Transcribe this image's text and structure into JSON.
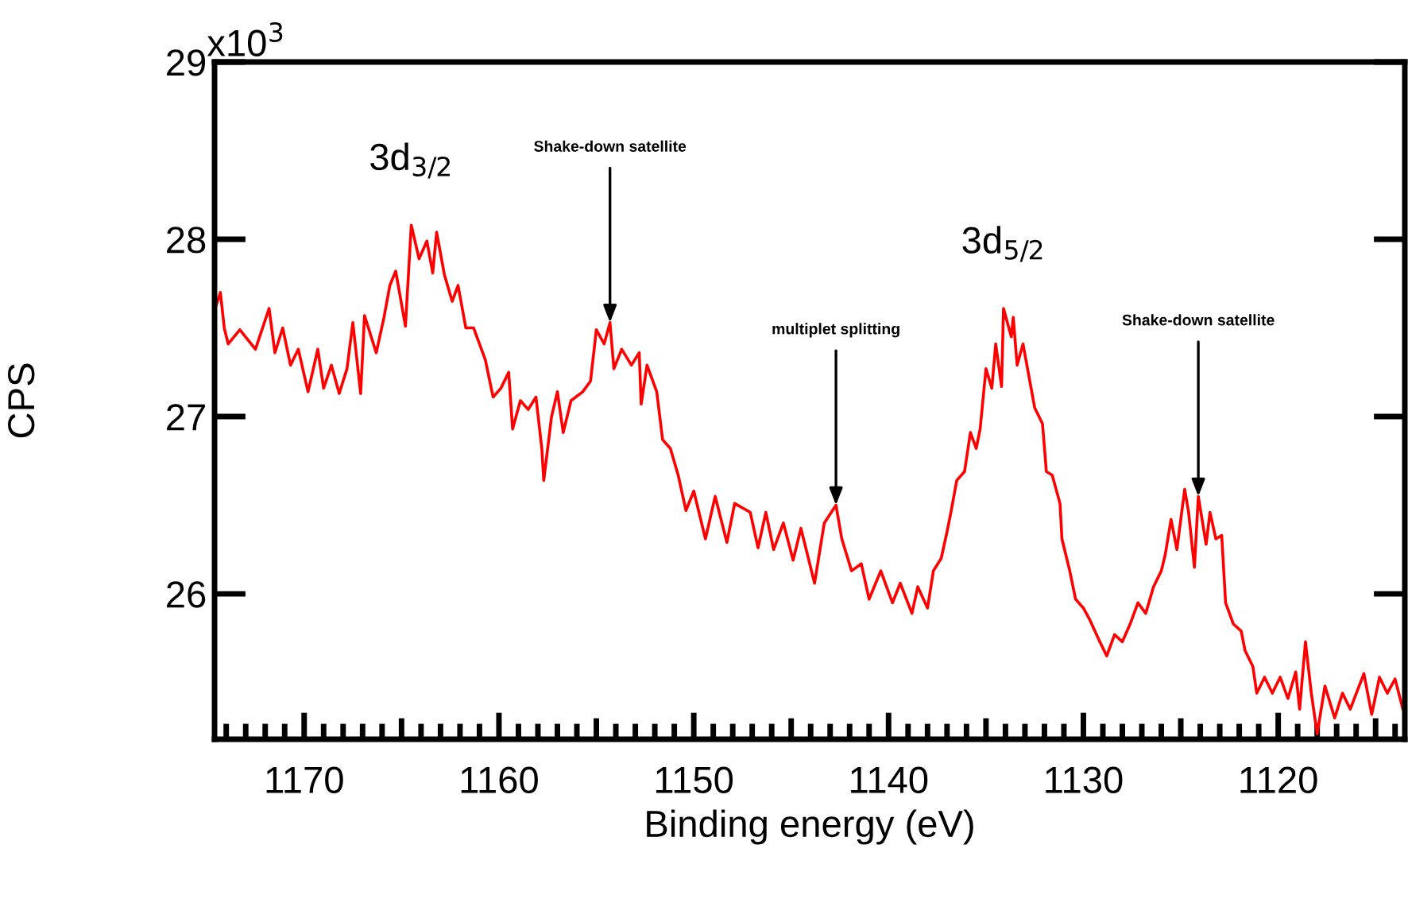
{
  "chart_data": {
    "type": "line",
    "xlabel": "Binding energy (eV)",
    "ylabel": "CPS",
    "x": [
      1174.6,
      1174.3,
      1174.1,
      1173.9,
      1173.3,
      1172.5,
      1171.8,
      1171.5,
      1171.1,
      1170.7,
      1170.3,
      1169.8,
      1169.3,
      1169.0,
      1168.6,
      1168.2,
      1167.8,
      1167.5,
      1167.1,
      1166.9,
      1166.3,
      1165.9,
      1165.6,
      1165.3,
      1164.8,
      1164.5,
      1164.1,
      1163.7,
      1163.4,
      1163.2,
      1162.8,
      1162.4,
      1162.1,
      1161.7,
      1161.3,
      1160.7,
      1160.3,
      1159.9,
      1159.5,
      1159.3,
      1158.9,
      1158.5,
      1158.1,
      1157.8,
      1157.7,
      1157.3,
      1157.0,
      1156.7,
      1156.3,
      1155.7,
      1155.3,
      1155.0,
      1154.6,
      1154.3,
      1154.1,
      1153.7,
      1153.2,
      1152.8,
      1152.7,
      1152.4,
      1151.9,
      1151.6,
      1151.2,
      1150.8,
      1150.4,
      1150.0,
      1149.4,
      1148.9,
      1148.3,
      1147.9,
      1147.1,
      1146.7,
      1146.3,
      1145.9,
      1145.4,
      1144.9,
      1144.5,
      1143.8,
      1143.3,
      1142.7,
      1142.4,
      1141.9,
      1141.4,
      1141.0,
      1140.4,
      1139.8,
      1139.4,
      1138.8,
      1138.5,
      1138.0,
      1137.7,
      1137.3,
      1137.0,
      1136.8,
      1136.5,
      1136.1,
      1135.8,
      1135.5,
      1135.3,
      1135.0,
      1134.7,
      1134.5,
      1134.2,
      1134.1,
      1133.7,
      1133.6,
      1133.4,
      1133.1,
      1132.9,
      1132.5,
      1132.1,
      1131.9,
      1131.6,
      1131.2,
      1131.1,
      1130.7,
      1130.4,
      1130.0,
      1129.7,
      1129.2,
      1128.8,
      1128.4,
      1128.0,
      1127.6,
      1127.2,
      1126.8,
      1126.4,
      1126.0,
      1125.8,
      1125.5,
      1125.2,
      1124.8,
      1124.6,
      1124.3,
      1124.1,
      1123.7,
      1123.5,
      1123.2,
      1122.9,
      1122.7,
      1122.3,
      1121.9,
      1121.7,
      1121.3,
      1121.1,
      1120.7,
      1120.3,
      1119.9,
      1119.5,
      1119.1,
      1118.9,
      1118.6,
      1118.3,
      1118.0,
      1117.6,
      1117.1,
      1116.7,
      1116.3,
      1115.6,
      1115.2,
      1114.8,
      1114.4,
      1114.0,
      1113.6
    ],
    "series": [
      {
        "color": "#ff0000",
        "values": [
          27.6,
          27.7,
          27.5,
          27.41,
          27.49,
          27.38,
          27.61,
          27.36,
          27.5,
          27.29,
          27.38,
          27.14,
          27.38,
          27.16,
          27.29,
          27.13,
          27.27,
          27.53,
          27.13,
          27.57,
          27.36,
          27.56,
          27.74,
          27.82,
          27.51,
          28.08,
          27.89,
          27.99,
          27.81,
          28.04,
          27.8,
          27.65,
          27.74,
          27.5,
          27.5,
          27.32,
          27.11,
          27.16,
          27.25,
          26.93,
          27.09,
          27.04,
          27.11,
          26.82,
          26.64,
          27.0,
          27.14,
          26.91,
          27.09,
          27.14,
          27.2,
          27.49,
          27.41,
          27.53,
          27.27,
          27.38,
          27.29,
          27.36,
          27.07,
          27.29,
          27.14,
          26.87,
          26.82,
          26.67,
          26.47,
          26.58,
          26.31,
          26.55,
          26.29,
          26.51,
          26.46,
          26.26,
          26.46,
          26.25,
          26.4,
          26.19,
          26.37,
          26.06,
          26.4,
          26.5,
          26.31,
          26.13,
          26.17,
          25.97,
          26.13,
          25.95,
          26.06,
          25.89,
          26.04,
          25.92,
          26.13,
          26.2,
          26.35,
          26.46,
          26.64,
          26.69,
          26.91,
          26.82,
          26.93,
          27.27,
          27.16,
          27.41,
          27.17,
          27.61,
          27.45,
          27.56,
          27.29,
          27.41,
          27.29,
          27.05,
          26.96,
          26.69,
          26.67,
          26.51,
          26.31,
          26.13,
          25.97,
          25.92,
          25.86,
          25.74,
          25.65,
          25.77,
          25.73,
          25.83,
          25.95,
          25.89,
          26.04,
          26.13,
          26.22,
          26.42,
          26.25,
          26.59,
          26.46,
          26.15,
          26.55,
          26.28,
          26.46,
          26.31,
          26.33,
          25.95,
          25.83,
          25.79,
          25.68,
          25.59,
          25.44,
          25.53,
          25.44,
          25.53,
          25.41,
          25.56,
          25.35,
          25.73,
          25.44,
          25.21,
          25.48,
          25.3,
          25.44,
          25.35,
          25.55,
          25.32,
          25.53,
          25.44,
          25.52,
          25.35
        ]
      }
    ],
    "xlim": [
      1174.6,
      1113.5
    ],
    "xticks": [
      {
        "value": 1174,
        "label": null
      },
      {
        "value": 1173,
        "label": null
      },
      {
        "value": 1172,
        "label": null
      },
      {
        "value": 1171,
        "label": null
      },
      1170,
      {
        "value": 1169,
        "label": null
      },
      {
        "value": 1168,
        "label": null
      },
      {
        "value": 1167,
        "label": null
      },
      {
        "value": 1166,
        "label": null
      },
      {
        "value": 1165,
        "label": null
      },
      {
        "value": 1164,
        "label": null
      },
      {
        "value": 1163,
        "label": null
      },
      {
        "value": 1162,
        "label": null
      },
      {
        "value": 1161,
        "label": null
      },
      1160,
      {
        "value": 1159,
        "label": null
      },
      {
        "value": 1158,
        "label": null
      },
      {
        "value": 1157,
        "label": null
      },
      {
        "value": 1156,
        "label": null
      },
      {
        "value": 1155,
        "label": null
      },
      {
        "value": 1154,
        "label": null
      },
      {
        "value": 1153,
        "label": null
      },
      {
        "value": 1152,
        "label": null
      },
      {
        "value": 1151,
        "label": null
      },
      1150,
      {
        "value": 1149,
        "label": null
      },
      {
        "value": 1148,
        "label": null
      },
      {
        "value": 1147,
        "label": null
      },
      {
        "value": 1146,
        "label": null
      },
      {
        "value": 1145,
        "label": null
      },
      {
        "value": 1144,
        "label": null
      },
      {
        "value": 1143,
        "label": null
      },
      {
        "value": 1142,
        "label": null
      },
      {
        "value": 1141,
        "label": null
      },
      1140,
      {
        "value": 1139,
        "label": null
      },
      {
        "value": 1138,
        "label": null
      },
      {
        "value": 1137,
        "label": null
      },
      {
        "value": 1136,
        "label": null
      },
      {
        "value": 1135,
        "label": null
      },
      {
        "value": 1134,
        "label": null
      },
      {
        "value": 1133,
        "label": null
      },
      {
        "value": 1132,
        "label": null
      },
      {
        "value": 1131,
        "label": null
      },
      1130,
      {
        "value": 1129,
        "label": null
      },
      {
        "value": 1128,
        "label": null
      },
      {
        "value": 1127,
        "label": null
      },
      {
        "value": 1126,
        "label": null
      },
      {
        "value": 1125,
        "label": null
      },
      {
        "value": 1124,
        "label": null
      },
      {
        "value": 1123,
        "label": null
      },
      {
        "value": 1122,
        "label": null
      },
      {
        "value": 1121,
        "label": null
      },
      1120,
      {
        "value": 1119,
        "label": null
      },
      {
        "value": 1118,
        "label": null
      },
      {
        "value": 1117,
        "label": null
      },
      {
        "value": 1116,
        "label": null
      },
      {
        "value": 1115,
        "label": null
      },
      {
        "value": 1114,
        "label": null
      }
    ],
    "ylim": [
      25.18,
      29
    ],
    "yticks": [
      26,
      27,
      28,
      29
    ],
    "grid": false,
    "marker": "none",
    "line_style": "solid",
    "annotations": [
      {
        "text": "3d$_{3/2}$",
        "x": 1164.5,
        "y": 28.08
      },
      {
        "text": "3d$_{5/2}$",
        "x": 1134.1,
        "y": 27.61
      },
      {
        "text": "Shake-down satellite",
        "x": 1154.3,
        "y": 27.53
      },
      {
        "text": "multiplet splitting",
        "x": 1142.7,
        "y": 26.5
      },
      {
        "text": "Shake-down satellite",
        "x": 1124.1,
        "y": 26.55
      },
      "x10$^{3}$"
    ]
  }
}
